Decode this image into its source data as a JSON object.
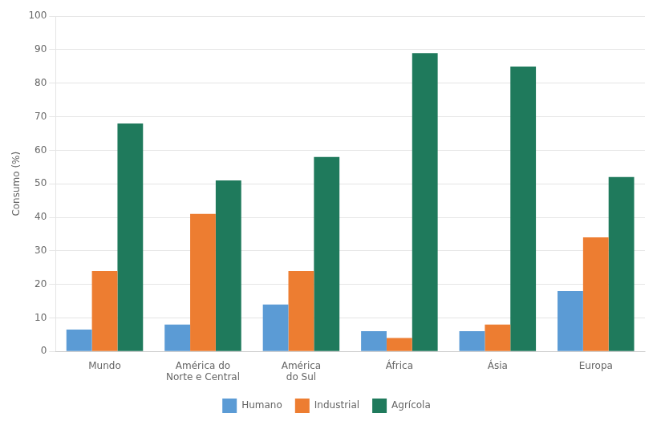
{
  "chart_data": {
    "type": "bar",
    "categories": [
      "Mundo",
      "América do\nNorte e Central",
      "América\ndo Sul",
      "África",
      "Ásia",
      "Europa"
    ],
    "series": [
      {
        "name": "Humano",
        "color": "#5b9bd5",
        "values": [
          6.5,
          8,
          14,
          6,
          6,
          18
        ]
      },
      {
        "name": "Industrial",
        "color": "#ed7d31",
        "values": [
          24,
          41,
          24,
          4,
          8,
          34
        ]
      },
      {
        "name": "Agrícola",
        "color": "#1f7a5c",
        "values": [
          68,
          51,
          58,
          89,
          85,
          52
        ]
      }
    ],
    "ylabel": "Consumo (%)",
    "ylim": [
      0,
      100
    ],
    "yticks": [
      0,
      10,
      20,
      30,
      40,
      50,
      60,
      70,
      80,
      90,
      100
    ],
    "grid": true,
    "legend": "bottom"
  }
}
